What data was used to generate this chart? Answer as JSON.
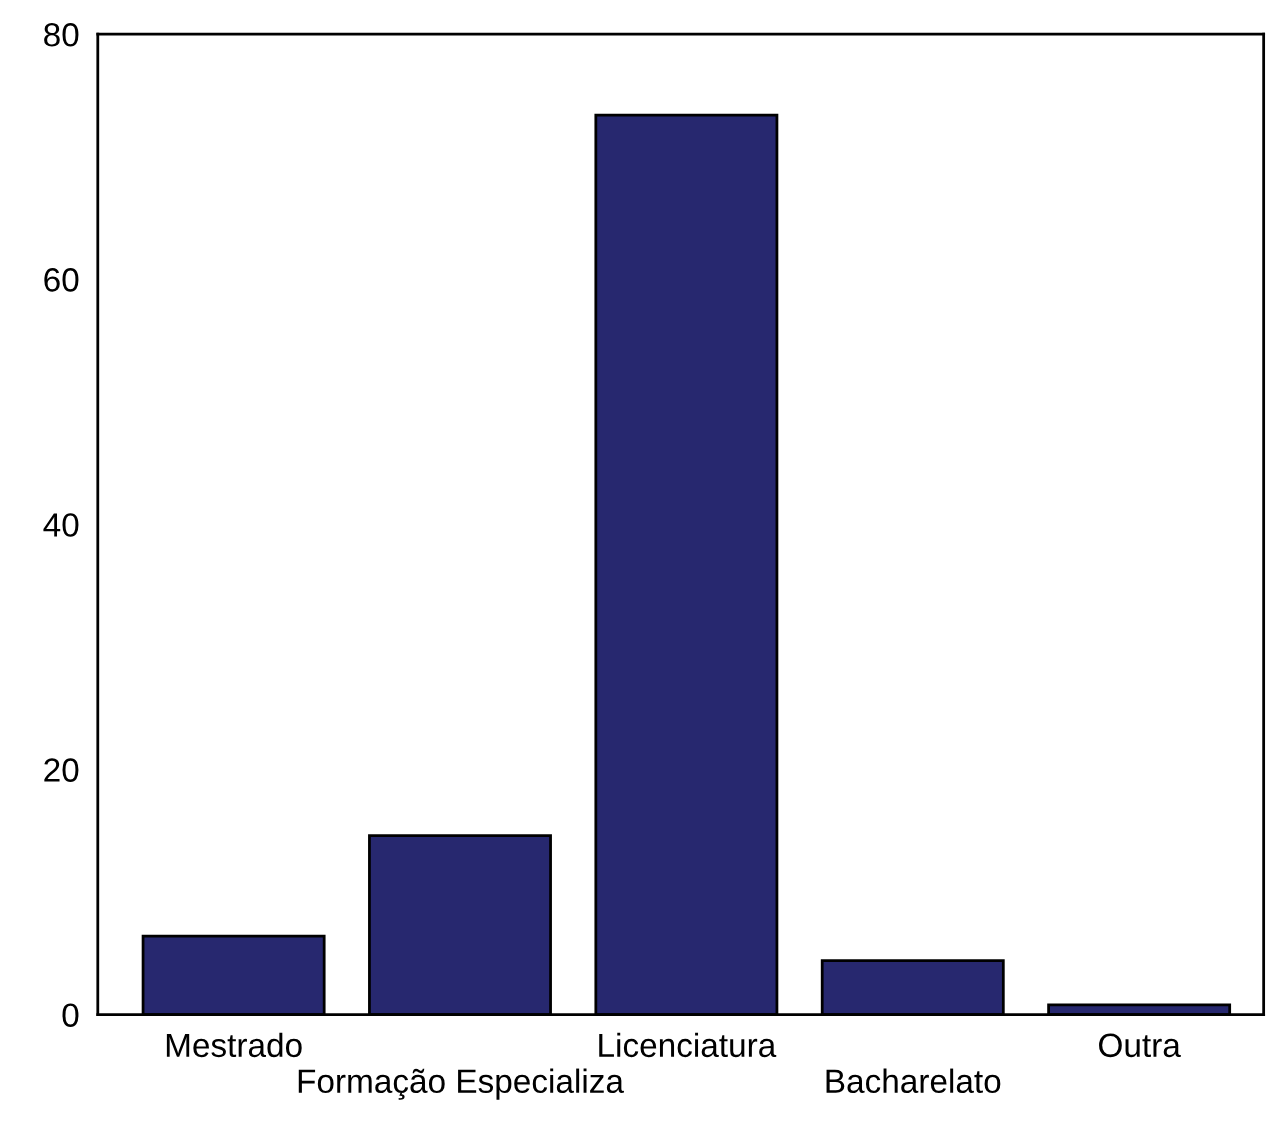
{
  "chart_data": {
    "type": "bar",
    "categories": [
      "Mestrado",
      "Formação Especializa",
      "Licenciatura",
      "Bacharelato",
      "Outra"
    ],
    "values": [
      6.4,
      14.6,
      73.4,
      4.4,
      0.8
    ],
    "color": "#27286f",
    "ylim": [
      0,
      80
    ],
    "yticks": [
      0,
      20,
      40,
      60,
      80
    ],
    "grid": false,
    "legend": false
  }
}
